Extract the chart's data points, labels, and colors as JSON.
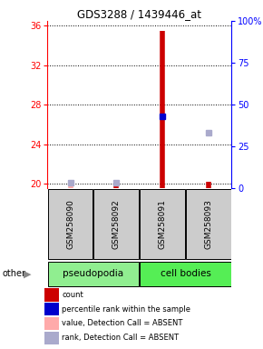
{
  "title": "GDS3288 / 1439446_at",
  "samples": [
    "GSM258090",
    "GSM258092",
    "GSM258091",
    "GSM258093"
  ],
  "group_colors": {
    "pseudopodia": "#90EE90",
    "cell bodies": "#55EE55"
  },
  "ylim_left": [
    19.5,
    36.5
  ],
  "ylim_right": [
    0,
    100
  ],
  "yticks_left": [
    20,
    24,
    28,
    32,
    36
  ],
  "yticks_right": [
    0,
    25,
    50,
    75,
    100
  ],
  "ytick_labels_right": [
    "0",
    "25",
    "50",
    "75",
    "100%"
  ],
  "count_values": [
    20.0,
    20.0,
    35.5,
    20.2
  ],
  "count_absent": [
    true,
    false,
    false,
    false
  ],
  "rank_values": [
    20.1,
    20.1,
    26.8,
    25.2
  ],
  "rank_absent": [
    true,
    true,
    false,
    true
  ],
  "bar_color": "#CC0000",
  "bar_absent_color": "#FFAAAA",
  "rank_color": "#0000CC",
  "rank_absent_color": "#AAAACC",
  "background_color": "#ffffff",
  "sample_box_color": "#CCCCCC",
  "legend_items": [
    {
      "label": "count",
      "color": "#CC0000"
    },
    {
      "label": "percentile rank within the sample",
      "color": "#0000CC"
    },
    {
      "label": "value, Detection Call = ABSENT",
      "color": "#FFAAAA"
    },
    {
      "label": "rank, Detection Call = ABSENT",
      "color": "#AAAACC"
    }
  ],
  "groups_info": [
    {
      "name": "pseudopodia",
      "start": 0,
      "end": 1,
      "color": "#90EE90"
    },
    {
      "name": "cell bodies",
      "start": 2,
      "end": 3,
      "color": "#55EE55"
    }
  ],
  "figsize": [
    2.9,
    3.84
  ],
  "dpi": 100
}
